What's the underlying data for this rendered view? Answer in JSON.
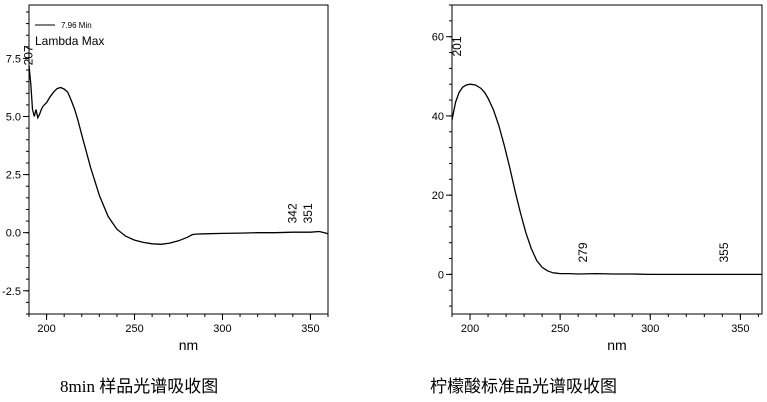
{
  "captions": [
    "8min  样品光谱吸收图",
    "柠檬酸标准品光谱吸收图"
  ],
  "chart_data": [
    {
      "type": "line",
      "title": "",
      "xlabel": "nm",
      "ylabel": "",
      "xlim": [
        190,
        360
      ],
      "ylim": [
        -3.5,
        9.8
      ],
      "x_ticks": [
        200,
        250,
        300,
        350
      ],
      "y_ticks": [
        -2.5,
        0.0,
        2.5,
        5.0,
        7.5
      ],
      "y_tick_labels": [
        "-2.5",
        "0.0",
        "2.5",
        "5.0",
        "7.5"
      ],
      "legend": {
        "entries": [
          "7.96 Min",
          "Lambda Max"
        ],
        "position": "top-left"
      },
      "series": [
        {
          "name": "7.96 Min",
          "color": "#000000",
          "x": [
            190,
            191,
            192,
            193,
            194,
            195,
            196,
            197,
            198,
            200,
            202,
            204,
            206,
            208,
            210,
            212,
            214,
            216,
            218,
            220,
            222,
            225,
            230,
            235,
            240,
            245,
            250,
            255,
            260,
            265,
            270,
            275,
            280,
            283,
            285,
            290,
            300,
            310,
            320,
            330,
            340,
            350,
            355,
            358,
            360
          ],
          "y": [
            7.2,
            6.4,
            5.3,
            5.0,
            5.3,
            4.95,
            5.1,
            5.3,
            5.45,
            5.6,
            5.85,
            6.05,
            6.2,
            6.25,
            6.18,
            6.05,
            5.7,
            5.3,
            4.8,
            4.2,
            3.65,
            2.8,
            1.6,
            0.7,
            0.15,
            -0.15,
            -0.32,
            -0.42,
            -0.48,
            -0.5,
            -0.45,
            -0.35,
            -0.2,
            -0.08,
            -0.06,
            -0.05,
            -0.03,
            -0.02,
            0.0,
            0.0,
            0.02,
            0.02,
            0.05,
            0.0,
            -0.05
          ]
        }
      ],
      "peak_labels": [
        {
          "text": "207",
          "x": 192,
          "y": 7.2
        },
        {
          "text": "342",
          "x": 342,
          "y": 0.4
        },
        {
          "text": "351",
          "x": 351,
          "y": 0.4
        }
      ]
    },
    {
      "type": "line",
      "title": "",
      "xlabel": "nm",
      "ylabel": "",
      "xlim": [
        190,
        362
      ],
      "ylim": [
        -10,
        68
      ],
      "x_ticks": [
        200,
        250,
        300,
        350
      ],
      "y_ticks": [
        0,
        20,
        40,
        60
      ],
      "y_tick_labels": [
        "0",
        "20",
        "40",
        "60"
      ],
      "series": [
        {
          "color": "#000000",
          "x": [
            190,
            192,
            194,
            196,
            198,
            200,
            203,
            206,
            208,
            210,
            213,
            216,
            219,
            222,
            225,
            228,
            231,
            234,
            237,
            240,
            243,
            246,
            248,
            250,
            255,
            260,
            270,
            280,
            290,
            300,
            320,
            340,
            355,
            362
          ],
          "y": [
            39,
            43.5,
            46,
            47.3,
            47.8,
            48,
            47.8,
            47,
            46,
            44.5,
            41.5,
            37.5,
            32.5,
            27,
            21,
            15.5,
            10.5,
            6.5,
            3.5,
            1.8,
            0.9,
            0.4,
            0.3,
            0.2,
            0.2,
            0.1,
            0.2,
            0.1,
            0.1,
            0.0,
            0.0,
            0.0,
            0.0,
            0.0
          ]
        }
      ],
      "peak_labels": [
        {
          "text": "201",
          "x": 195,
          "y": 55
        },
        {
          "text": "279",
          "x": 265,
          "y": 3
        },
        {
          "text": "355",
          "x": 343,
          "y": 3
        }
      ]
    }
  ]
}
